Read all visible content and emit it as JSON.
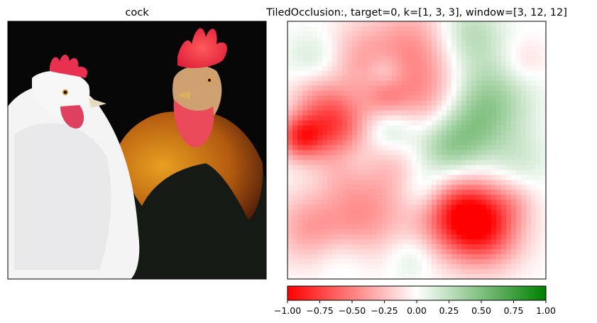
{
  "panels": {
    "left_title": "cock",
    "right_title": "TiledOcclusion:, target=0, k=[1, 3, 3], window=[3, 12, 12]"
  },
  "chart_data": {
    "type": "heatmap",
    "title": "TiledOcclusion:, target=0, k=[1, 3, 3], window=[3, 12, 12]",
    "colormap": {
      "low": "#ff0000",
      "mid": "#ffffff",
      "high": "#008000"
    },
    "colorbar": {
      "range": [
        -1.0,
        1.0
      ],
      "ticks": [
        -1.0,
        -0.75,
        -0.5,
        -0.25,
        0.0,
        0.25,
        0.5,
        0.75,
        1.0
      ],
      "tick_labels": [
        "−1.00",
        "−0.75",
        "−0.50",
        "−0.25",
        "0.00",
        "0.25",
        "0.50",
        "0.75",
        "1.00"
      ]
    },
    "grid": false,
    "blobs": [
      {
        "cx": 0.05,
        "cy": 0.45,
        "r": 0.06,
        "v": -0.7
      },
      {
        "cx": 0.18,
        "cy": 0.4,
        "r": 0.09,
        "v": -0.7
      },
      {
        "cx": 0.25,
        "cy": 0.15,
        "r": 0.1,
        "v": -0.3
      },
      {
        "cx": 0.48,
        "cy": 0.1,
        "r": 0.12,
        "v": -0.4
      },
      {
        "cx": 0.55,
        "cy": 0.32,
        "r": 0.11,
        "v": -0.45
      },
      {
        "cx": 0.38,
        "cy": 0.3,
        "r": 0.06,
        "v": -0.3
      },
      {
        "cx": 0.1,
        "cy": 0.28,
        "r": 0.07,
        "v": -0.2
      },
      {
        "cx": 0.68,
        "cy": 0.75,
        "r": 0.11,
        "v": -0.95
      },
      {
        "cx": 0.78,
        "cy": 0.82,
        "r": 0.1,
        "v": -0.45
      },
      {
        "cx": 0.3,
        "cy": 0.75,
        "r": 0.11,
        "v": -0.4
      },
      {
        "cx": 0.08,
        "cy": 0.8,
        "r": 0.1,
        "v": -0.35
      },
      {
        "cx": 0.42,
        "cy": 0.55,
        "r": 0.09,
        "v": -0.25
      },
      {
        "cx": 0.22,
        "cy": 0.58,
        "r": 0.07,
        "v": -0.2
      },
      {
        "cx": 0.12,
        "cy": 0.15,
        "r": 0.08,
        "v": 0.25
      },
      {
        "cx": 0.38,
        "cy": 0.2,
        "r": 0.05,
        "v": 0.2
      },
      {
        "cx": 0.4,
        "cy": 0.42,
        "r": 0.07,
        "v": 0.3
      },
      {
        "cx": 0.62,
        "cy": 0.48,
        "r": 0.11,
        "v": 0.5
      },
      {
        "cx": 0.76,
        "cy": 0.32,
        "r": 0.12,
        "v": 0.45
      },
      {
        "cx": 0.7,
        "cy": 0.05,
        "r": 0.09,
        "v": 0.3
      },
      {
        "cx": 0.25,
        "cy": 0.55,
        "r": 0.06,
        "v": 0.15
      },
      {
        "cx": 0.52,
        "cy": 0.66,
        "r": 0.06,
        "v": 0.2
      },
      {
        "cx": 0.9,
        "cy": 0.55,
        "r": 0.08,
        "v": 0.15
      },
      {
        "cx": 0.2,
        "cy": 0.92,
        "r": 0.07,
        "v": 0.1
      },
      {
        "cx": 0.48,
        "cy": 0.92,
        "r": 0.06,
        "v": 0.15
      },
      {
        "cx": 0.92,
        "cy": 0.15,
        "r": 0.06,
        "v": -0.15
      },
      {
        "cx": 0.88,
        "cy": 0.7,
        "r": 0.06,
        "v": -0.15
      }
    ]
  }
}
